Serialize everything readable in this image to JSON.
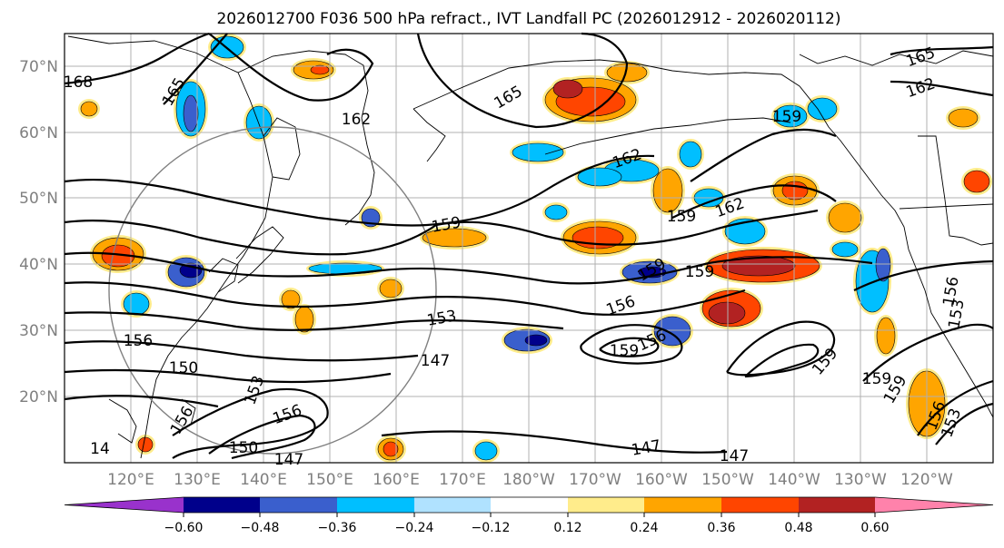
{
  "title": "2026012700 F036 500 hPa refract., IVT Landfall PC (2026012912 - 2026020112)",
  "lat_labels": [
    "70°N",
    "60°N",
    "50°N",
    "40°N",
    "30°N",
    "20°N"
  ],
  "lon_labels": [
    "120°E",
    "130°E",
    "140°E",
    "150°E",
    "160°E",
    "170°E",
    "180°W",
    "170°W",
    "160°W",
    "150°W",
    "140°W",
    "130°W",
    "120°W"
  ],
  "colorbar": {
    "ticks": [
      "−0.60",
      "−0.48",
      "−0.36",
      "−0.24",
      "−0.12",
      "0.12",
      "0.24",
      "0.36",
      "0.48",
      "0.60"
    ],
    "colors": [
      "#9932cc",
      "#00008b",
      "#3a5fcd",
      "#00bfff",
      "#b0e2ff",
      "#ffffff",
      "#ffec8b",
      "#ffa500",
      "#ff4500",
      "#b22222",
      "#ff82ab"
    ]
  },
  "contour_labels": [
    "168",
    "165",
    "162",
    "165",
    "165",
    "162",
    "159",
    "162",
    "159",
    "159",
    "162",
    "159",
    "159",
    "156",
    "153",
    "156",
    "147",
    "150",
    "156",
    "153",
    "156",
    "159",
    "156",
    "159",
    "147",
    "147",
    "150",
    "147",
    "156",
    "153",
    "159",
    "159",
    "153",
    "156",
    "14"
  ]
}
